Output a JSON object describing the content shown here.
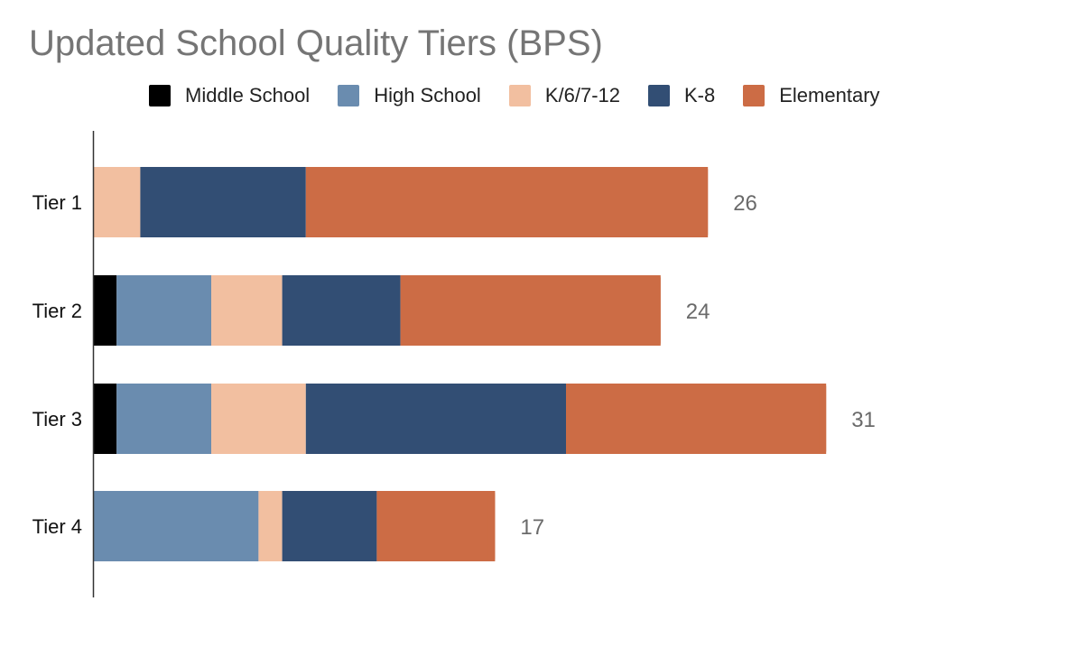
{
  "chart_data": {
    "type": "bar",
    "orientation": "horizontal",
    "stacked": true,
    "title": "Updated School Quality Tiers (BPS)",
    "legend_position": "top",
    "grid": false,
    "xlim": [
      0,
      31
    ],
    "categories": [
      "Tier 1",
      "Tier 2",
      "Tier 3",
      "Tier 4"
    ],
    "series": [
      {
        "name": "Middle School",
        "color": "#000000",
        "values": [
          0,
          1,
          1,
          0
        ]
      },
      {
        "name": "High School",
        "color": "#6a8caf",
        "values": [
          0,
          4,
          4,
          7
        ]
      },
      {
        "name": "K/6/7-12",
        "color": "#f2bfa0",
        "values": [
          2,
          3,
          4,
          1
        ]
      },
      {
        "name": "K-8",
        "color": "#324e74",
        "values": [
          7,
          5,
          11,
          4
        ]
      },
      {
        "name": "Elementary",
        "color": "#cc6c45",
        "values": [
          17,
          11,
          11,
          5
        ]
      }
    ],
    "totals": [
      "26",
      "24",
      "31",
      "17"
    ]
  }
}
